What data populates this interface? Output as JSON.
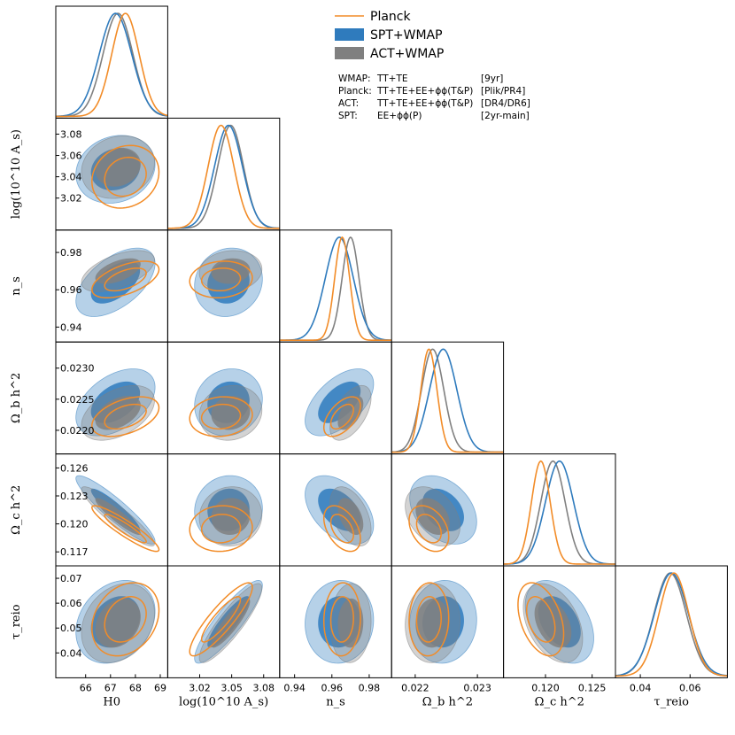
{
  "chart_data": {
    "type": "triangle-corner",
    "parameters": [
      {
        "key": "H0",
        "label": "H₀",
        "range": [
          64.8,
          69.3
        ],
        "ticks": [
          66,
          67,
          68,
          69
        ]
      },
      {
        "key": "logAs",
        "label": "log(10¹⁰Aₛ)",
        "range": [
          2.99,
          3.095
        ],
        "ticks": [
          3.02,
          3.05,
          3.08
        ],
        "ticks_y": [
          3.02,
          3.04,
          3.06,
          3.08
        ]
      },
      {
        "key": "ns",
        "label": "nₛ",
        "range": [
          0.932,
          0.992
        ],
        "ticks": [
          0.94,
          0.96,
          0.98
        ]
      },
      {
        "key": "ombh2",
        "label": "Ω_b h²",
        "range": [
          0.02162,
          0.02342
        ],
        "ticks": [
          0.022,
          0.023
        ],
        "ticks_y": [
          0.022,
          0.0225,
          0.023
        ]
      },
      {
        "key": "omch2",
        "label": "Ω_c h²",
        "range": [
          0.1155,
          0.1275
        ],
        "ticks": [
          0.12,
          0.125
        ],
        "ticks_y": [
          0.117,
          0.12,
          0.123,
          0.126
        ]
      },
      {
        "key": "tau",
        "label": "τ_reio",
        "range": [
          0.03,
          0.075
        ],
        "ticks": [
          0.04,
          0.06
        ],
        "ticks_y": [
          0.04,
          0.05,
          0.06,
          0.07
        ]
      }
    ],
    "display": {
      "y_tick_text": {
        "ombh2": [
          "0.0220",
          "0.0225",
          "0.0230"
        ],
        "omch2": [
          "0.117",
          "0.120",
          "0.123",
          "0.126"
        ],
        "logAs": [
          "3.02",
          "3.04",
          "3.06",
          "3.08"
        ],
        "tau": [
          "0.04",
          "0.05",
          "0.06",
          "0.07"
        ],
        "ns": [
          "0.94",
          "0.96",
          "0.98"
        ]
      },
      "x_tick_text": {
        "H0": [
          "66",
          "67",
          "68",
          "69"
        ],
        "logAs": [
          "3.02",
          "3.05",
          "3.08"
        ],
        "ns": [
          "0.94",
          "0.96",
          "0.98"
        ],
        "ombh2": [
          "0.022",
          "0.023"
        ],
        "omch2": [
          "0.120",
          "0.125"
        ],
        "tau": [
          "0.04",
          "0.06"
        ]
      },
      "axis_labels": {
        "H0": "H0",
        "logAs": "log(10^10 A_s)",
        "ns": "n_s",
        "ombh2": "Ω_b h^2",
        "omch2": "Ω_c h^2",
        "tau": "τ_reio"
      }
    },
    "series": [
      {
        "name": "Planck",
        "style": "line",
        "color": "#f28c28",
        "mean": {
          "H0": 67.6,
          "logAs": 3.04,
          "ns": 0.9655,
          "ombh2": 0.02222,
          "omch2": 0.1195,
          "tau": 0.0535
        },
        "sigma": {
          "H0": 0.55,
          "logAs": 0.012,
          "ns": 0.004,
          "ombh2": 0.00013,
          "omch2": 0.001,
          "tau": 0.006
        }
      },
      {
        "name": "SPT+WMAP",
        "style": "filled",
        "color": "#2f7bbd",
        "mean": {
          "H0": 67.2,
          "logAs": 3.047,
          "ns": 0.964,
          "ombh2": 0.02245,
          "omch2": 0.1215,
          "tau": 0.0525
        },
        "sigma": {
          "H0": 0.65,
          "logAs": 0.013,
          "ns": 0.0075,
          "ombh2": 0.00022,
          "omch2": 0.0015,
          "tau": 0.0068
        }
      },
      {
        "name": "ACT+WMAP",
        "style": "filled",
        "color": "#808080",
        "mean": {
          "H0": 67.3,
          "logAs": 3.049,
          "ns": 0.97,
          "ombh2": 0.02228,
          "omch2": 0.1208,
          "tau": 0.052
        },
        "sigma": {
          "H0": 0.6,
          "logAs": 0.012,
          "ns": 0.0045,
          "ombh2": 0.00018,
          "omch2": 0.0013,
          "tau": 0.0065
        }
      }
    ],
    "legend": {
      "position": "top-right",
      "entries": [
        "Planck",
        "SPT+WMAP",
        "ACT+WMAP"
      ],
      "table": [
        {
          "exp": "WMAP:",
          "spectra": "TT+TE",
          "release": "[9yr]"
        },
        {
          "exp": "Planck:",
          "spectra": "TT+TE+EE+ϕϕ(T&P)",
          "release": "[Plik/PR4]"
        },
        {
          "exp": "ACT:",
          "spectra": "TT+TE+EE+ϕϕ(T&P)",
          "release": "[DR4/DR6]"
        },
        {
          "exp": "SPT:",
          "spectra": "EE+ϕϕ(P)",
          "release": "[2yr-main]"
        }
      ]
    }
  }
}
